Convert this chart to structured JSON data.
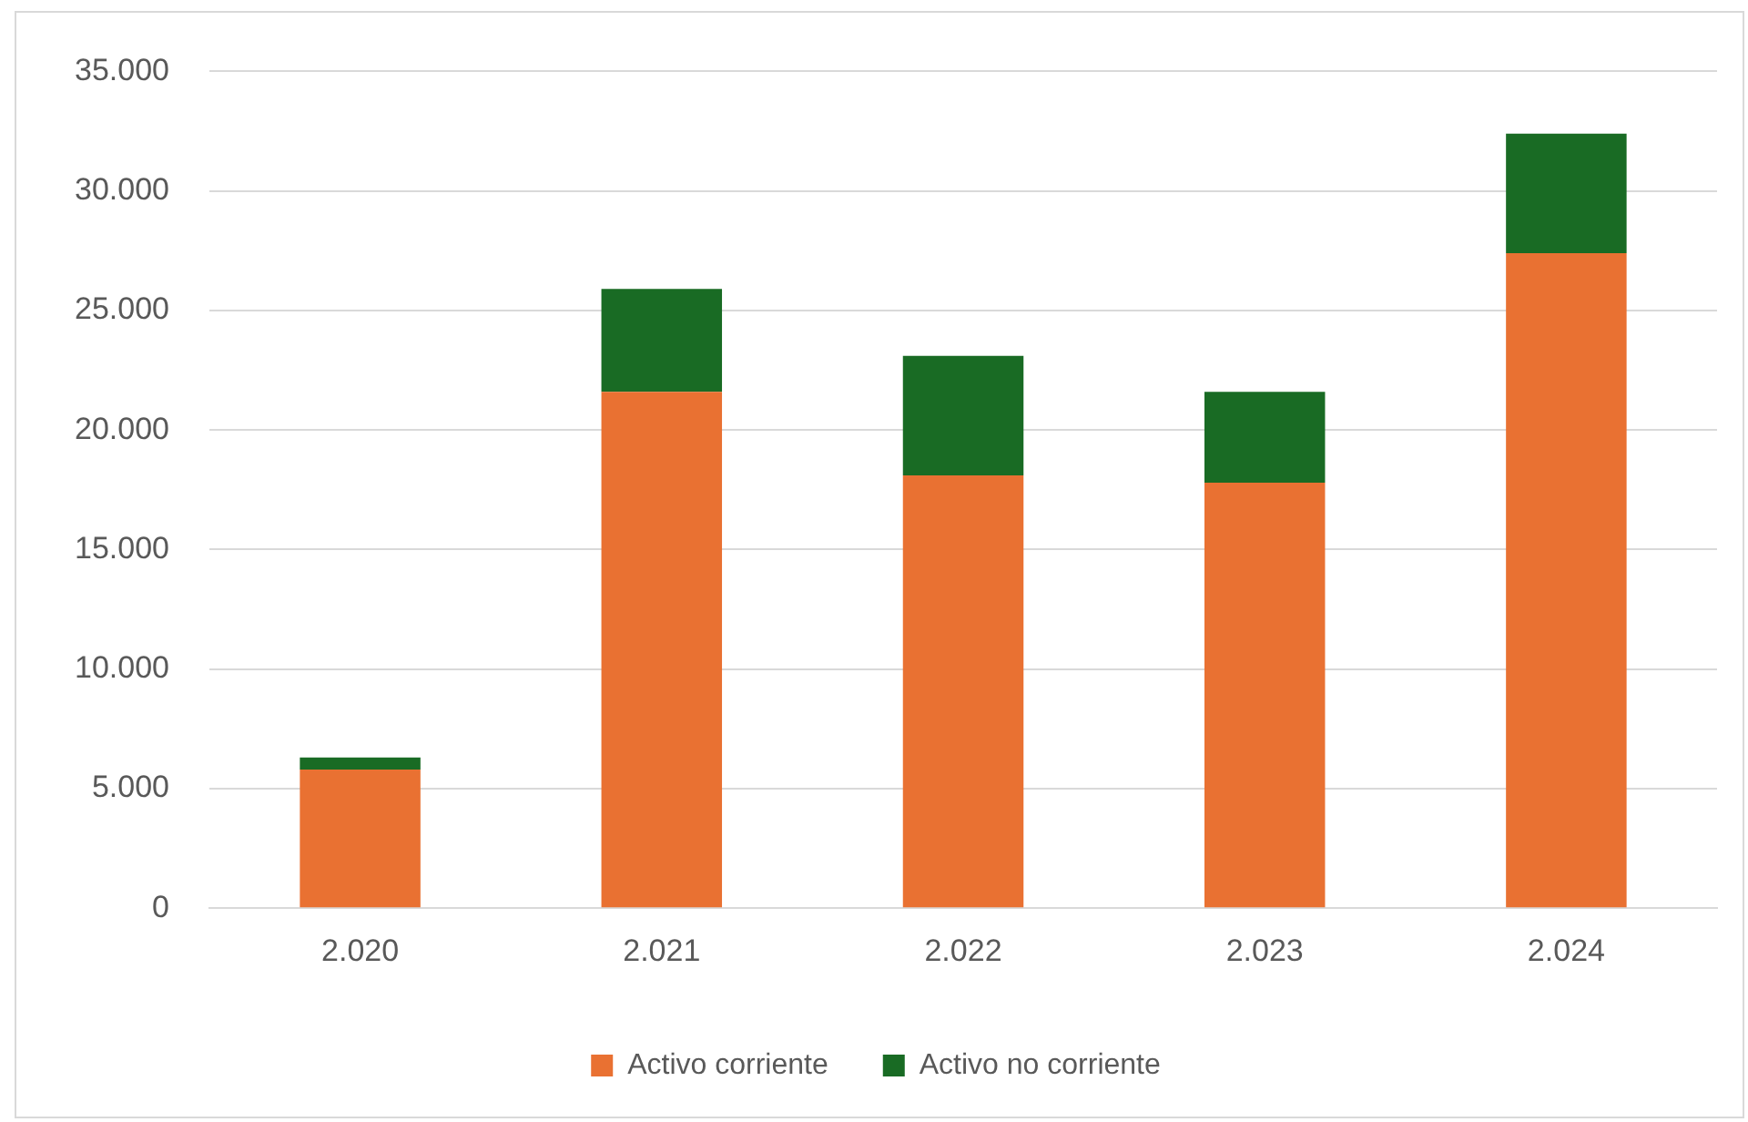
{
  "chart_data": {
    "type": "bar",
    "stacked": true,
    "categories": [
      "2.020",
      "2.021",
      "2.022",
      "2.023",
      "2.024"
    ],
    "series": [
      {
        "name": "Activo corriente",
        "color": "#e97132",
        "values": [
          5800,
          21600,
          18100,
          17800,
          27400
        ]
      },
      {
        "name": "Activo no corriente",
        "color": "#196b24",
        "values": [
          500,
          4300,
          5000,
          3800,
          5000
        ]
      }
    ],
    "ylim": [
      0,
      35000
    ],
    "yticks": [
      {
        "value": 0,
        "label": "0"
      },
      {
        "value": 5000,
        "label": "5.000"
      },
      {
        "value": 10000,
        "label": "10.000"
      },
      {
        "value": 15000,
        "label": "15.000"
      },
      {
        "value": 20000,
        "label": "20.000"
      },
      {
        "value": 25000,
        "label": "25.000"
      },
      {
        "value": 30000,
        "label": "30.000"
      },
      {
        "value": 35000,
        "label": "35.000"
      }
    ],
    "grid": "y",
    "legend": "bottom"
  }
}
